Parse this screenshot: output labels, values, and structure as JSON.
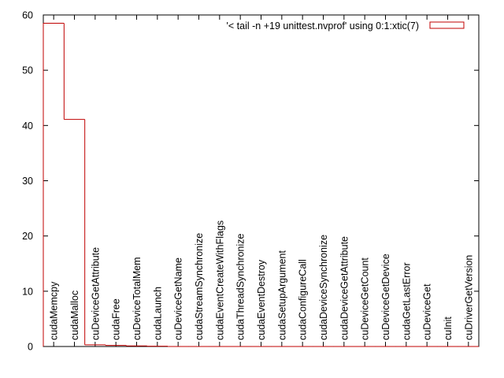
{
  "chart_data": {
    "type": "bar",
    "style": "histogram-steps",
    "legend_label": "'< tail -n +19 unittest.nvprof' using 0:1:xtic(7)",
    "legend_position": "top-right",
    "series_color": "#c00000",
    "categories": [
      "cudaMemcpy",
      "cudaMalloc",
      "cuDeviceGetAttribute",
      "cudaFree",
      "cuDeviceTotalMem",
      "cudaLaunch",
      "cuDeviceGetName",
      "cudaStreamSynchronize",
      "cudaEventCreateWithFlags",
      "cudaThreadSynchronize",
      "cudaEventDestroy",
      "cudaSetupArgument",
      "cudaConfigureCall",
      "cudaDeviceSynchronize",
      "cudaDeviceGetAttribute",
      "cuDeviceGetCount",
      "cuDeviceGetDevice",
      "cudaGetLastError",
      "cuDeviceGet",
      "cuInit",
      "cuDriverGetVersion"
    ],
    "values": [
      58.5,
      41.1,
      0.3,
      0.2,
      0.1,
      0.05,
      0,
      0,
      0,
      0,
      0,
      0,
      0,
      0,
      0,
      0,
      0,
      0,
      0,
      0,
      0
    ],
    "ylim": [
      0,
      60
    ],
    "yticks": [
      0,
      10,
      20,
      30,
      40,
      50,
      60
    ],
    "grid": false
  }
}
